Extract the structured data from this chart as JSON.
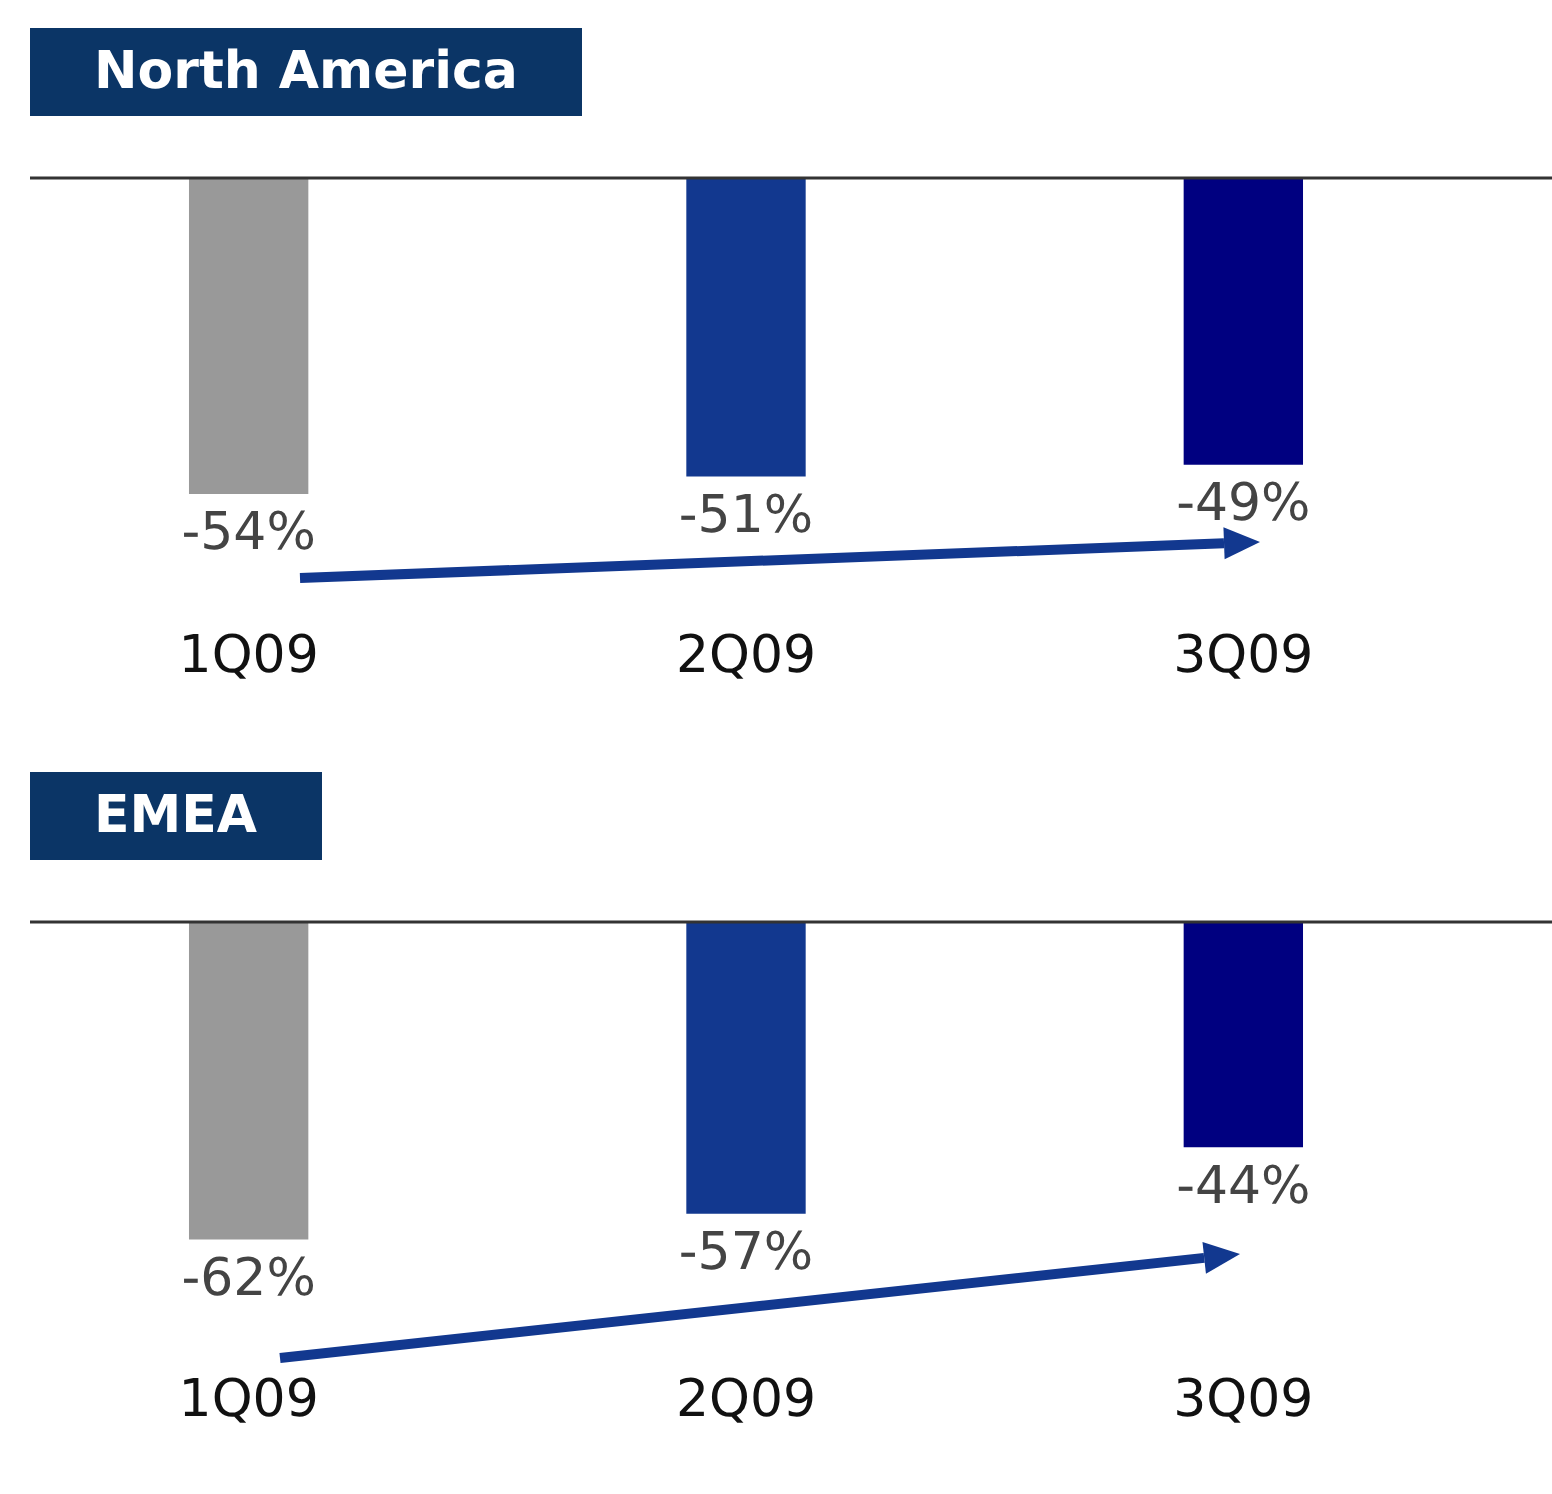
{
  "chart_data": [
    {
      "type": "bar",
      "title": "North America",
      "categories": [
        "1Q09",
        "2Q09",
        "3Q09"
      ],
      "values": [
        -54,
        -51,
        -49
      ],
      "colors": [
        "#999999",
        "#12388f",
        "#000080"
      ],
      "value_labels": [
        "-54%",
        "-51%",
        "-49%"
      ],
      "grid": false,
      "legend": false
    },
    {
      "type": "bar",
      "title": "EMEA",
      "categories": [
        "1Q09",
        "2Q09",
        "3Q09"
      ],
      "values": [
        -62,
        -57,
        -44
      ],
      "colors": [
        "#999999",
        "#12388f",
        "#000080"
      ],
      "value_labels": [
        "-62%",
        "-57%",
        "-44%"
      ],
      "grid": false,
      "legend": false
    }
  ]
}
